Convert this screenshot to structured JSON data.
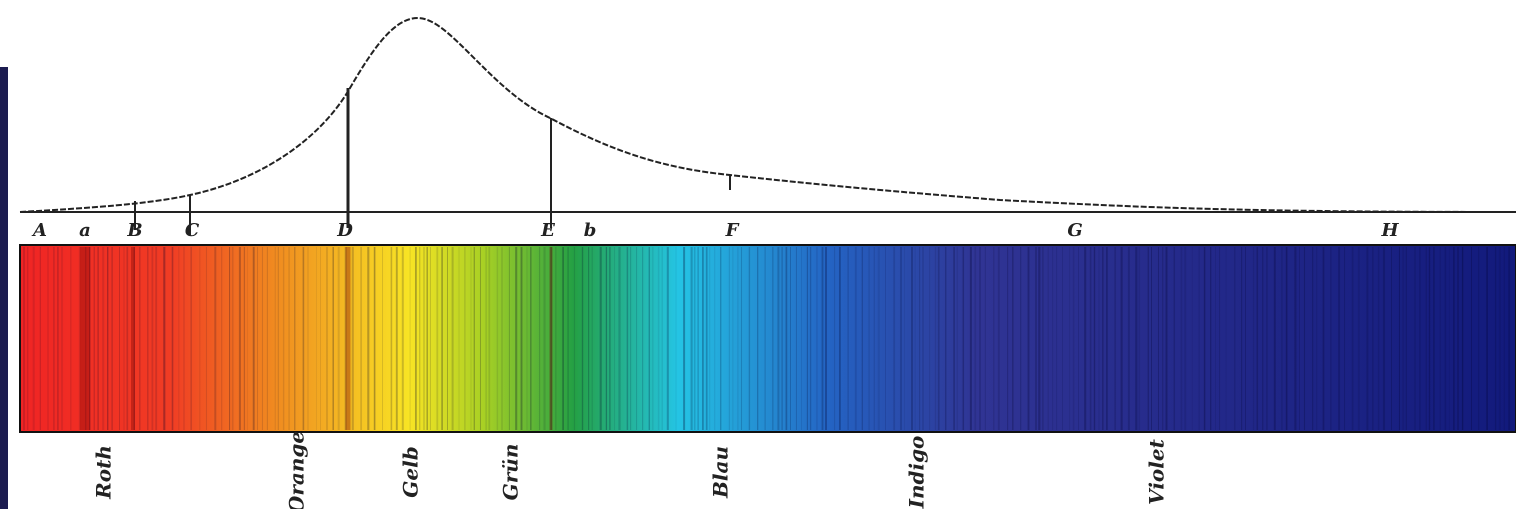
{
  "lines": [
    "A",
    "a",
    "B",
    "C",
    "D",
    "E",
    "b",
    "F",
    "G",
    "H"
  ],
  "colors": [
    "Roth",
    "Orange",
    "Gelb",
    "Grün",
    "Blau",
    "Indigo",
    "Violet"
  ]
}
